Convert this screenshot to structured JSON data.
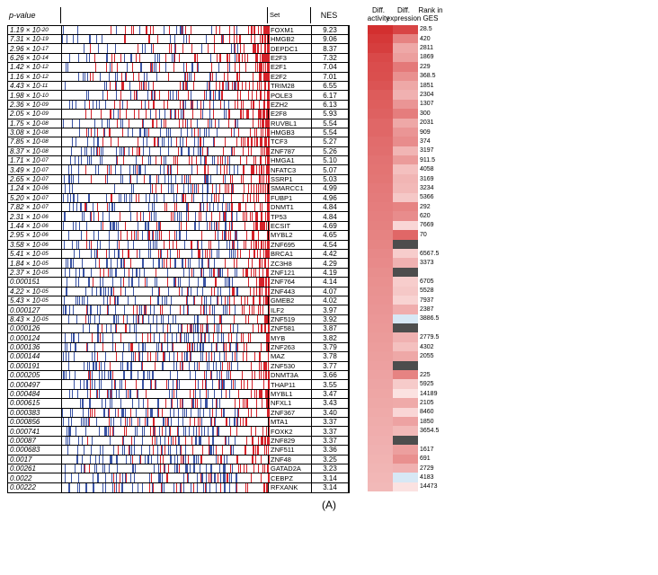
{
  "headers": {
    "pvalue": "p-value",
    "set": "Set",
    "nes": "NES",
    "diff_act": "Diff.\nactivity",
    "diff_expr": "Diff.\nexpression",
    "rank": "Rank in\nGES"
  },
  "tick_colors": {
    "blue": "#3a53a4",
    "red": "#d6222a"
  },
  "heat_palette": {
    "min": "#fde9e8",
    "max": "#d32f2f",
    "na": "#4d4d4d",
    "neg": "#d7e8f5"
  },
  "figure_label": "(A)",
  "rows": [
    {
      "p": "1.19 × 10⁻²⁰",
      "set": "FOXM1",
      "nes": "9.23",
      "da": 1.0,
      "de": 0.88,
      "ges": "28.5"
    },
    {
      "p": "7.31 × 10⁻¹⁹",
      "set": "HMGB2",
      "nes": "9.06",
      "da": 0.95,
      "de": 0.55,
      "ges": "420"
    },
    {
      "p": "2.96 × 10⁻¹⁷",
      "set": "DEPDC1",
      "nes": "8.37",
      "da": 0.92,
      "de": 0.35,
      "ges": "2811"
    },
    {
      "p": "6.26 × 10⁻¹⁴",
      "set": "E2F3",
      "nes": "7.32",
      "da": 0.86,
      "de": 0.4,
      "ges": "1869"
    },
    {
      "p": "1.42 × 10⁻¹²",
      "set": "E2F1",
      "nes": "7.04",
      "da": 0.84,
      "de": 0.6,
      "ges": "229"
    },
    {
      "p": "1.16 × 10⁻¹²",
      "set": "E2F2",
      "nes": "7.01",
      "da": 0.83,
      "de": 0.48,
      "ges": "368.5"
    },
    {
      "p": "4.43 × 10⁻¹¹",
      "set": "TRIM28",
      "nes": "6.55",
      "da": 0.8,
      "de": 0.35,
      "ges": "1851"
    },
    {
      "p": "1.98 × 10⁻¹⁰",
      "set": "POLE3",
      "nes": "6.17",
      "da": 0.76,
      "de": 0.3,
      "ges": "2304"
    },
    {
      "p": "2.36 × 10⁻⁰⁹",
      "set": "EZH2",
      "nes": "6.13",
      "da": 0.75,
      "de": 0.45,
      "ges": "1307"
    },
    {
      "p": "2.05 × 10⁻⁰⁹",
      "set": "E2F8",
      "nes": "5.93",
      "da": 0.73,
      "de": 0.58,
      "ges": "300"
    },
    {
      "p": "1.75 × 10⁻⁰⁸",
      "set": "RUVBL1",
      "nes": "5.54",
      "da": 0.7,
      "de": 0.35,
      "ges": "2031"
    },
    {
      "p": "3.08 × 10⁻⁰⁸",
      "set": "HMGB3",
      "nes": "5.54",
      "da": 0.7,
      "de": 0.45,
      "ges": "909"
    },
    {
      "p": "7.85 × 10⁻⁰⁸",
      "set": "TCF3",
      "nes": "5.27",
      "da": 0.67,
      "de": 0.5,
      "ges": "374"
    },
    {
      "p": "8.37 × 10⁻⁰⁸",
      "set": "ZNF787",
      "nes": "5.26",
      "da": 0.66,
      "de": 0.28,
      "ges": "3197"
    },
    {
      "p": "1.71 × 10⁻⁰⁷",
      "set": "HMGA1",
      "nes": "5.10",
      "da": 0.64,
      "de": 0.42,
      "ges": "911.5"
    },
    {
      "p": "3.49 × 10⁻⁰⁷",
      "set": "NFATC3",
      "nes": "5.07",
      "da": 0.63,
      "de": 0.22,
      "ges": "4058"
    },
    {
      "p": "2.65 × 10⁻⁰⁷",
      "set": "SSRP1",
      "nes": "5.03",
      "da": 0.62,
      "de": 0.28,
      "ges": "3169"
    },
    {
      "p": "1.24 × 10⁻⁰⁶",
      "set": "SMARCC1",
      "nes": "4.99",
      "da": 0.6,
      "de": 0.26,
      "ges": "3234"
    },
    {
      "p": "5.20 × 10⁻⁰⁷",
      "set": "FUBP1",
      "nes": "4.96",
      "da": 0.59,
      "de": 0.18,
      "ges": "5366"
    },
    {
      "p": "7.82 × 10⁻⁰⁷",
      "set": "DNMT1",
      "nes": "4.84",
      "da": 0.58,
      "de": 0.55,
      "ges": "292"
    },
    {
      "p": "2.31 × 10⁻⁰⁶",
      "set": "TP53",
      "nes": "4.84",
      "da": 0.57,
      "de": 0.5,
      "ges": "620"
    },
    {
      "p": "1.44 × 10⁻⁰⁶",
      "set": "ECSIT",
      "nes": "4.69",
      "da": 0.56,
      "de": 0.1,
      "ges": "7669"
    },
    {
      "p": "2.95 × 10⁻⁰⁶",
      "set": "MYBL2",
      "nes": "4.65",
      "da": 0.55,
      "de": 0.7,
      "ges": "70"
    },
    {
      "p": "3.58 × 10⁻⁰⁶",
      "set": "ZNF695",
      "nes": "4.54",
      "da": 0.54,
      "de": null,
      "ges": ""
    },
    {
      "p": "5.41 × 10⁻⁰⁵",
      "set": "BRCA1",
      "nes": "4.42",
      "da": 0.52,
      "de": 0.15,
      "ges": "6567.5"
    },
    {
      "p": "1.84 × 10⁻⁰⁵",
      "set": "ZC3H8",
      "nes": "4.29",
      "da": 0.51,
      "de": 0.3,
      "ges": "3373"
    },
    {
      "p": "2.37 × 10⁻⁰⁵",
      "set": "ZNF121",
      "nes": "4.19",
      "da": 0.49,
      "de": null,
      "ges": ""
    },
    {
      "p": "0.000151",
      "set": "ZNF764",
      "nes": "4.14",
      "da": 0.48,
      "de": 0.15,
      "ges": "6705"
    },
    {
      "p": "4.22 × 10⁻⁰⁵",
      "set": "ZNF443",
      "nes": "4.07",
      "da": 0.47,
      "de": 0.18,
      "ges": "5528"
    },
    {
      "p": "5.43 × 10⁻⁰⁵",
      "set": "GMEB2",
      "nes": "4.02",
      "da": 0.46,
      "de": 0.12,
      "ges": "7937"
    },
    {
      "p": "0.000127",
      "set": "ILF2",
      "nes": "3.97",
      "da": 0.45,
      "de": 0.32,
      "ges": "2387"
    },
    {
      "p": "8.43 × 10⁻⁰⁵",
      "set": "ZNF519",
      "nes": "3.92",
      "da": 0.44,
      "de": -0.15,
      "ges": "3886.5"
    },
    {
      "p": "0.000126",
      "set": "ZNF581",
      "nes": "3.87",
      "da": 0.43,
      "de": null,
      "ges": ""
    },
    {
      "p": "0.000124",
      "set": "MYB",
      "nes": "3.82",
      "da": 0.42,
      "de": 0.3,
      "ges": "2779.5"
    },
    {
      "p": "0.000136",
      "set": "ZNF263",
      "nes": "3.79",
      "da": 0.41,
      "de": 0.22,
      "ges": "4302"
    },
    {
      "p": "0.000144",
      "set": "MAZ",
      "nes": "3.78",
      "da": 0.4,
      "de": 0.35,
      "ges": "2055"
    },
    {
      "p": "0.000191",
      "set": "ZNF530",
      "nes": "3.77",
      "da": 0.39,
      "de": null,
      "ges": ""
    },
    {
      "p": "0.000205",
      "set": "DNMT3A",
      "nes": "3.66",
      "da": 0.38,
      "de": 0.55,
      "ges": "225"
    },
    {
      "p": "0.000497",
      "set": "THAP11",
      "nes": "3.55",
      "da": 0.37,
      "de": 0.16,
      "ges": "5925"
    },
    {
      "p": "0.000484",
      "set": "MYBL1",
      "nes": "3.47",
      "da": 0.36,
      "de": 0.04,
      "ges": "14189"
    },
    {
      "p": "0.000615",
      "set": "NFXL1",
      "nes": "3.43",
      "da": 0.35,
      "de": 0.34,
      "ges": "2105"
    },
    {
      "p": "0.000383",
      "set": "ZNF367",
      "nes": "3.40",
      "da": 0.34,
      "de": 0.1,
      "ges": "8460"
    },
    {
      "p": "0.000856",
      "set": "MTA1",
      "nes": "3.37",
      "da": 0.33,
      "de": 0.38,
      "ges": "1850"
    },
    {
      "p": "0.000741",
      "set": "FOXK2",
      "nes": "3.37",
      "da": 0.32,
      "de": 0.26,
      "ges": "3654.5"
    },
    {
      "p": "0.00087",
      "set": "ZNF829",
      "nes": "3.37",
      "da": 0.31,
      "de": null,
      "ges": ""
    },
    {
      "p": "0.000683",
      "set": "ZNF511",
      "nes": "3.36",
      "da": 0.3,
      "de": 0.4,
      "ges": "1617"
    },
    {
      "p": "0.0017",
      "set": "ZNF48",
      "nes": "3.25",
      "da": 0.29,
      "de": 0.48,
      "ges": "691"
    },
    {
      "p": "0.00261",
      "set": "GATAD2A",
      "nes": "3.23",
      "da": 0.28,
      "de": 0.3,
      "ges": "2729"
    },
    {
      "p": "0.0022",
      "set": "CEBPZ",
      "nes": "3.14",
      "da": 0.27,
      "de": -0.12,
      "ges": "4183"
    },
    {
      "p": "0.00222",
      "set": "RFXANK",
      "nes": "3.14",
      "da": 0.26,
      "de": 0.04,
      "ges": "14473"
    }
  ]
}
